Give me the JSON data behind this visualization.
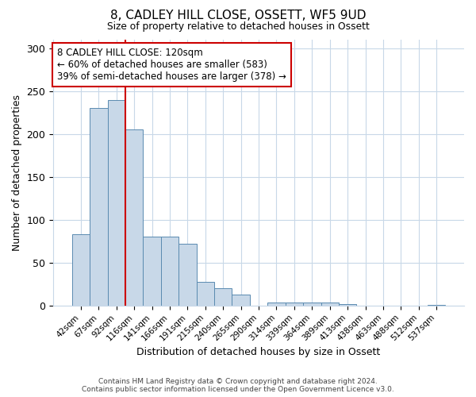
{
  "title": "8, CADLEY HILL CLOSE, OSSETT, WF5 9UD",
  "subtitle": "Size of property relative to detached houses in Ossett",
  "xlabel": "Distribution of detached houses by size in Ossett",
  "ylabel": "Number of detached properties",
  "bar_labels": [
    "42sqm",
    "67sqm",
    "92sqm",
    "116sqm",
    "141sqm",
    "166sqm",
    "191sqm",
    "215sqm",
    "240sqm",
    "265sqm",
    "290sqm",
    "314sqm",
    "339sqm",
    "364sqm",
    "389sqm",
    "413sqm",
    "438sqm",
    "463sqm",
    "488sqm",
    "512sqm",
    "537sqm"
  ],
  "bar_values": [
    83,
    230,
    240,
    205,
    80,
    80,
    72,
    28,
    20,
    13,
    0,
    4,
    4,
    4,
    4,
    2,
    0,
    0,
    0,
    0,
    1
  ],
  "bar_color": "#c8d8e8",
  "bar_edge_color": "#5a8ab0",
  "vline_color": "#cc0000",
  "annotation_text": "8 CADLEY HILL CLOSE: 120sqm\n← 60% of detached houses are smaller (583)\n39% of semi-detached houses are larger (378) →",
  "annotation_box_color": "#ffffff",
  "annotation_box_edge": "#cc0000",
  "ylim": [
    0,
    310
  ],
  "yticks": [
    0,
    50,
    100,
    150,
    200,
    250,
    300
  ],
  "footer1": "Contains HM Land Registry data © Crown copyright and database right 2024.",
  "footer2": "Contains public sector information licensed under the Open Government Licence v3.0.",
  "bg_color": "#ffffff",
  "grid_color": "#c8d8e8"
}
